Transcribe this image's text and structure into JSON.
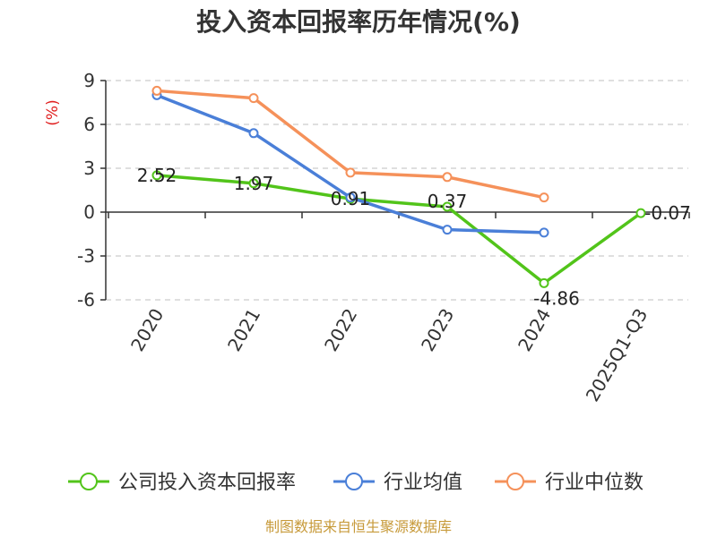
{
  "colors": {
    "series_company": "#52c41a",
    "series_industry_avg": "#4a7fd8",
    "series_industry_median": "#f5915a",
    "unit_red": "#e02020",
    "source_gold": "#c79a3a",
    "grid": "#cccccc",
    "axis": "#333333"
  },
  "chart_data": {
    "type": "line",
    "title": "投入资本回报率历年情况(%)",
    "ylabel": "(%)",
    "xlabel": "",
    "categories": [
      "2020",
      "2021",
      "2022",
      "2023",
      "2024",
      "2025Q1-Q3"
    ],
    "ylim": [
      -6,
      9
    ],
    "yticks": [
      9,
      6,
      3,
      0,
      -3,
      -6
    ],
    "ytick_labels": [
      "9",
      "6",
      "3",
      "0",
      "-3",
      "-6"
    ],
    "grid": true,
    "legend_position": "bottom",
    "series": [
      {
        "name": "公司投入资本回报率",
        "color_key": "series_company",
        "values": [
          2.52,
          1.97,
          0.91,
          0.37,
          -4.86,
          -0.07
        ],
        "labels": [
          "2.52",
          "1.97",
          "0.91",
          "0.37",
          "-4.86",
          "-0.07"
        ]
      },
      {
        "name": "行业均值",
        "color_key": "series_industry_avg",
        "values": [
          8.0,
          5.4,
          1.0,
          -1.2,
          -1.4,
          null
        ]
      },
      {
        "name": "行业中位数",
        "color_key": "series_industry_median",
        "values": [
          8.3,
          7.8,
          2.7,
          2.4,
          1.0,
          null
        ]
      }
    ]
  },
  "footer": {
    "source": "制图数据来自恒生聚源数据库"
  }
}
